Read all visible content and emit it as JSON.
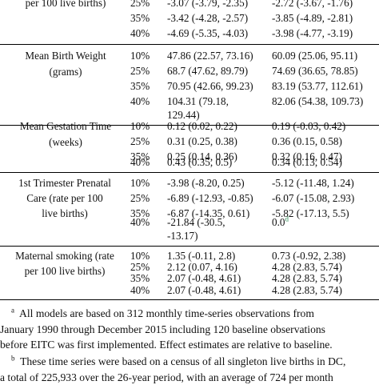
{
  "table": {
    "groups": [
      {
        "label_lines": [
          "per 100 live births)"
        ],
        "rows": [
          {
            "pct": "25%",
            "col1": "-3.07 (-3.79, -2.35)",
            "col2": "-2.72 (-3.67, -1.76)"
          },
          {
            "pct": "35%",
            "col1": "-3.42 (-4.28, -2.57)",
            "col2": "-3.85 (-4.89, -2.81)"
          },
          {
            "pct": "40%",
            "col1": "-4.69 (-5.35, -4.03)",
            "col2": "-3.98 (-4.77, -3.19)"
          }
        ]
      },
      {
        "label_lines": [
          "Mean Birth Weight",
          "(grams)"
        ],
        "rows": [
          {
            "pct": "10%",
            "col1": "47.86 (22.57, 73.16)",
            "col2": "60.09 (25.06, 95.11)"
          },
          {
            "pct": "25%",
            "col1": "68.7 (47.62, 89.79)",
            "col2": "74.69 (36.65, 78.85)"
          },
          {
            "pct": "35%",
            "col1": "70.95 (42.66, 99.23)",
            "col2": "83.19 (53.77, 112.61)"
          },
          {
            "pct": "40%",
            "col1": "104.31 (79.18,",
            "col1_cont": "129.44)",
            "col2": "82.06 (54.38, 109.73)"
          }
        ]
      },
      {
        "label_lines": [
          "Mean Gestation Time",
          "(weeks)"
        ],
        "rows": [
          {
            "pct": "10%",
            "col1": "0.12 (0.02, 0.22)",
            "col2": "0.19 (-0.03, 0.42)"
          },
          {
            "pct": "25%",
            "col1": "0.31 (0.25, 0.38)",
            "col2": "0.36 (0.15, 0.58)"
          },
          {
            "pct": "35%",
            "col1": "0.25 (0.14, 0.36)",
            "col2": "0.32 (0.16, 0.47)"
          },
          {
            "pct": "40%",
            "col1": "0.43 (0.35, 0.5)",
            "col2": "0.34 (0.13, 0.54)"
          }
        ]
      },
      {
        "label_lines": [
          "1st Trimester Prenatal",
          "Care (rate per 100",
          "live births)"
        ],
        "rows": [
          {
            "pct": "10%",
            "col1": "-3.98 (-8.20, 0.25)",
            "col2": "-5.12 (-11.48, 1.24)"
          },
          {
            "pct": "25%",
            "col1": "-6.89 (-12.93, -0.85)",
            "col2": "-6.07 (-15.08, 2.93)"
          },
          {
            "pct": "35%",
            "col1": "-6.87 (-14.35, 0.61)",
            "col2": "-5.82 (-17.13, 5.5)"
          },
          {
            "pct": "40%",
            "col1": "-21.84 (-30.5,",
            "col1_cont": "-13.17)",
            "col2": "0.0",
            "col2_mark": "d"
          }
        ]
      },
      {
        "label_lines": [
          "Maternal smoking (rate",
          "per 100 live births)"
        ],
        "rows": [
          {
            "pct": "10%",
            "col1": "1.35 (-0.11, 2.8)",
            "col2": "0.73 (-0.92, 2.38)"
          },
          {
            "pct": "25%",
            "col1": "2.12 (0.07, 4.16)",
            "col2": "4.28 (2.83, 5.74)"
          },
          {
            "pct": "35%",
            "col1": "2.07 (-0.48, 4.61)",
            "col2": "4.28 (2.83, 5.74)"
          },
          {
            "pct": "40%",
            "col1": "2.07 (-0.48, 4.61)",
            "col2": "4.28 (2.83, 5.74)"
          }
        ]
      }
    ]
  },
  "footnotes": [
    {
      "mark": "a",
      "lines": [
        "All models are based on 312 monthly time-series observations from",
        "January 1990 through December 2015 including 120 baseline observations",
        "before EITC was first implemented. Effect estimates are relative to baseline."
      ]
    },
    {
      "mark": "b",
      "lines": [
        "These time series were based on a census of all singleton live births in DC,",
        "a total of 225,933 over the 26-year period, with an average of 724 per month"
      ]
    }
  ]
}
